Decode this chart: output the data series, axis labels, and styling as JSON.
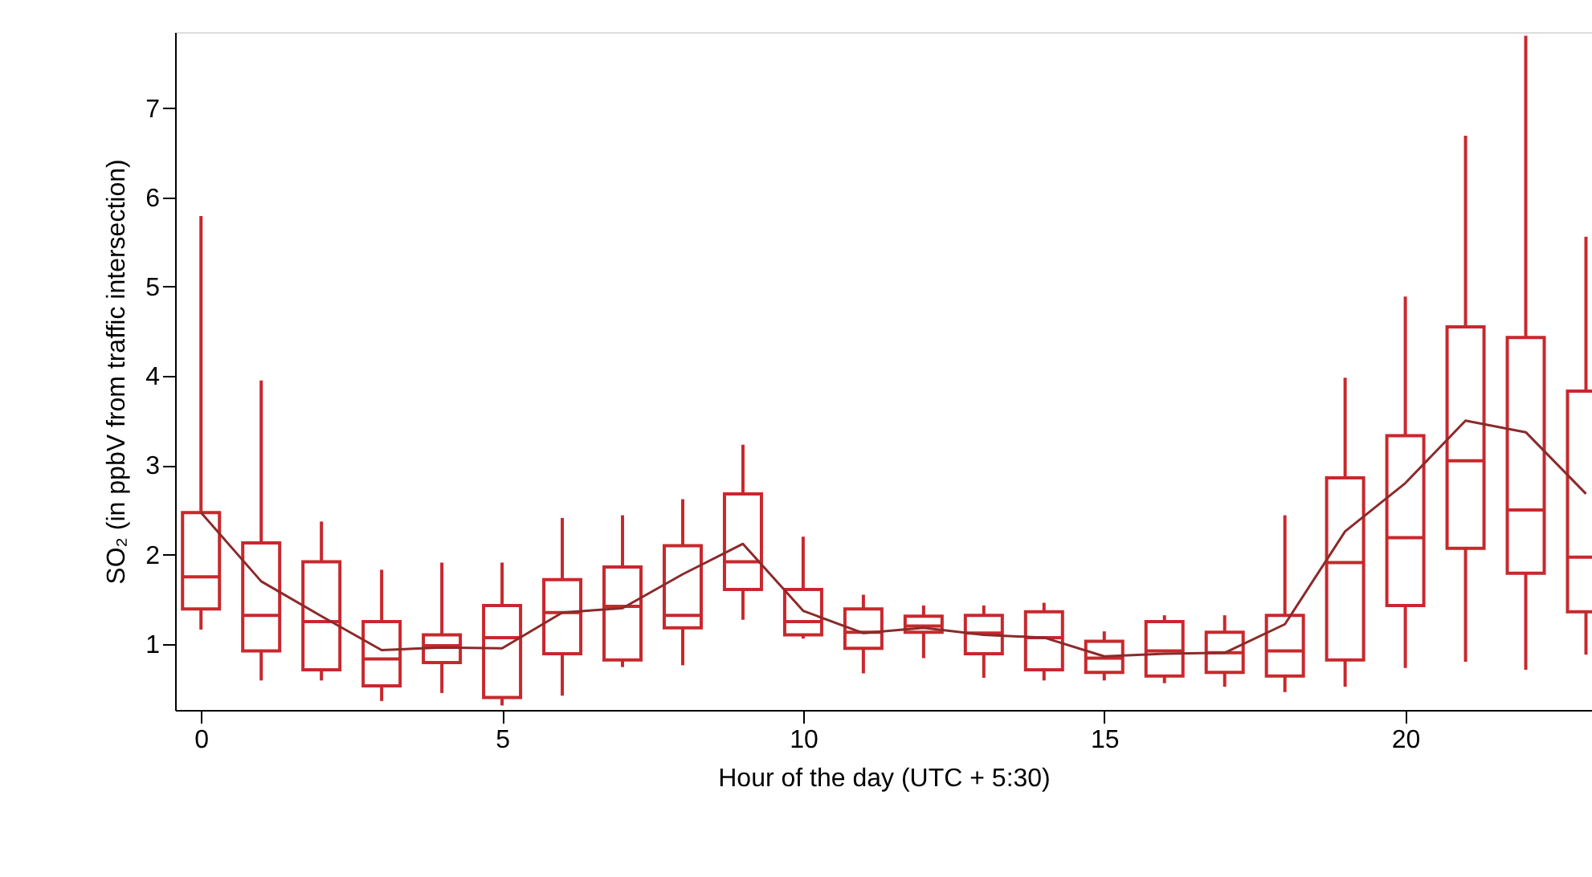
{
  "chart_data": {
    "type": "box",
    "xlabel": "Hour of the day (UTC + 5:30)",
    "ylabel": "SO₂ (in ppbV from traffic intersection)",
    "x": [
      0,
      1,
      2,
      3,
      4,
      5,
      6,
      7,
      8,
      9,
      10,
      11,
      12,
      13,
      14,
      15,
      16,
      17,
      18,
      19,
      20,
      21,
      22,
      23
    ],
    "xlim": [
      -0.43,
      23.1
    ],
    "xticks": [
      0,
      5,
      10,
      15,
      20
    ],
    "ylim": [
      0.26,
      7.85
    ],
    "yticks": [
      1,
      2,
      3,
      4,
      5,
      6,
      7
    ],
    "grid": false,
    "series": [
      {
        "type": "box",
        "color": "#c8282d",
        "boxes": [
          {
            "low": 1.16,
            "q1": 1.39,
            "median": 1.75,
            "q3": 2.47,
            "high": 5.79
          },
          {
            "low": 0.59,
            "q1": 0.92,
            "median": 1.32,
            "q3": 2.13,
            "high": 3.95
          },
          {
            "low": 0.59,
            "q1": 0.71,
            "median": 1.25,
            "q3": 1.92,
            "high": 2.37
          },
          {
            "low": 0.36,
            "q1": 0.53,
            "median": 0.83,
            "q3": 1.25,
            "high": 1.83
          },
          {
            "low": 0.45,
            "q1": 0.79,
            "median": 0.98,
            "q3": 1.1,
            "high": 1.91
          },
          {
            "low": 0.31,
            "q1": 0.4,
            "median": 1.07,
            "q3": 1.43,
            "high": 1.91
          },
          {
            "low": 0.42,
            "q1": 0.89,
            "median": 1.35,
            "q3": 1.72,
            "high": 2.41
          },
          {
            "low": 0.74,
            "q1": 0.82,
            "median": 1.42,
            "q3": 1.86,
            "high": 2.44
          },
          {
            "low": 0.76,
            "q1": 1.18,
            "median": 1.32,
            "q3": 2.1,
            "high": 2.62
          },
          {
            "low": 1.27,
            "q1": 1.61,
            "median": 1.92,
            "q3": 2.68,
            "high": 3.23
          },
          {
            "low": 1.06,
            "q1": 1.1,
            "median": 1.25,
            "q3": 1.61,
            "high": 2.2
          },
          {
            "low": 0.67,
            "q1": 0.95,
            "median": 1.13,
            "q3": 1.39,
            "high": 1.55
          },
          {
            "low": 0.84,
            "q1": 1.13,
            "median": 1.2,
            "q3": 1.31,
            "high": 1.43
          },
          {
            "low": 0.62,
            "q1": 0.89,
            "median": 1.12,
            "q3": 1.32,
            "high": 1.43
          },
          {
            "low": 0.59,
            "q1": 0.71,
            "median": 1.07,
            "q3": 1.36,
            "high": 1.46
          },
          {
            "low": 0.59,
            "q1": 0.68,
            "median": 0.84,
            "q3": 1.03,
            "high": 1.14
          },
          {
            "low": 0.56,
            "q1": 0.64,
            "median": 0.92,
            "q3": 1.25,
            "high": 1.32
          },
          {
            "low": 0.52,
            "q1": 0.68,
            "median": 0.9,
            "q3": 1.13,
            "high": 1.32
          },
          {
            "low": 0.46,
            "q1": 0.64,
            "median": 0.92,
            "q3": 1.32,
            "high": 2.44
          },
          {
            "low": 0.52,
            "q1": 0.82,
            "median": 1.91,
            "q3": 2.86,
            "high": 3.98
          },
          {
            "low": 0.73,
            "q1": 1.43,
            "median": 2.19,
            "q3": 3.33,
            "high": 4.89
          },
          {
            "low": 0.8,
            "q1": 2.07,
            "median": 3.05,
            "q3": 4.55,
            "high": 6.69
          },
          {
            "low": 0.71,
            "q1": 1.79,
            "median": 2.5,
            "q3": 4.43,
            "high": 7.81
          },
          {
            "low": 0.88,
            "q1": 1.36,
            "median": 1.97,
            "q3": 3.83,
            "high": 5.56
          }
        ]
      },
      {
        "type": "line",
        "color": "#8b2a2a",
        "values": [
          2.47,
          1.7,
          1.31,
          0.93,
          0.96,
          0.95,
          1.35,
          1.4,
          1.78,
          2.12,
          1.37,
          1.12,
          1.18,
          1.1,
          1.07,
          0.86,
          0.89,
          0.9,
          1.22,
          2.26,
          2.8,
          3.5,
          3.37,
          2.68
        ]
      }
    ]
  }
}
